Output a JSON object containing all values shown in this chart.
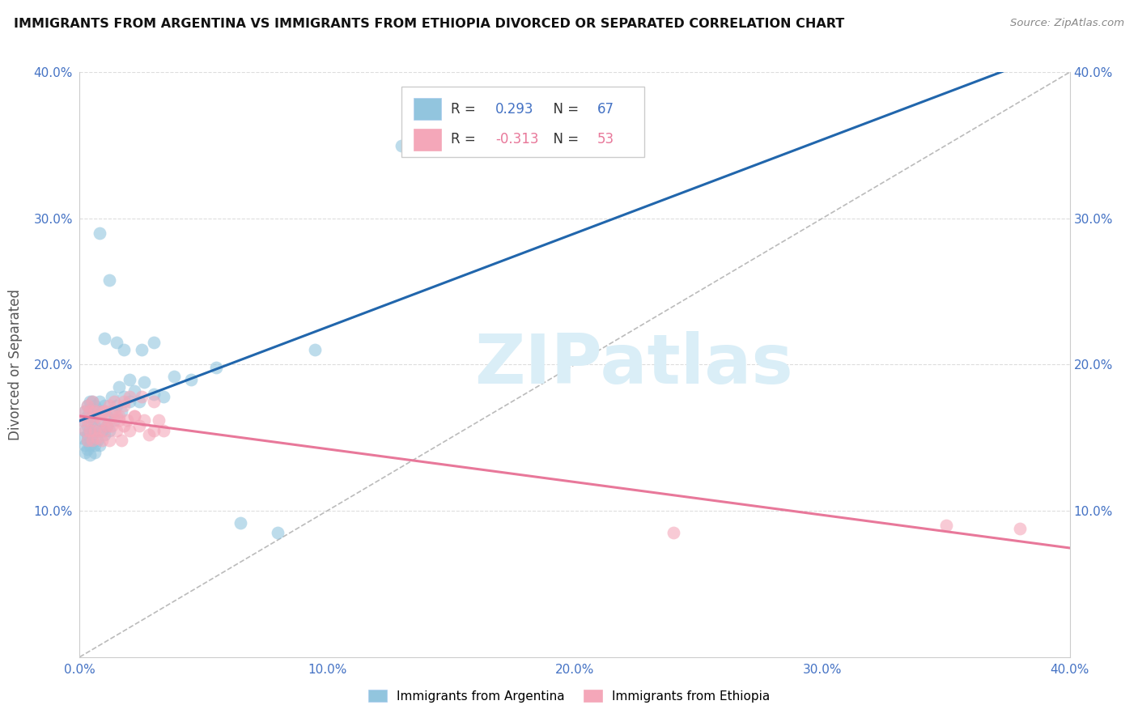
{
  "title": "IMMIGRANTS FROM ARGENTINA VS IMMIGRANTS FROM ETHIOPIA DIVORCED OR SEPARATED CORRELATION CHART",
  "source": "Source: ZipAtlas.com",
  "ylabel": "Divorced or Separated",
  "xlim": [
    0.0,
    0.4
  ],
  "ylim": [
    0.0,
    0.4
  ],
  "xtick_vals": [
    0.0,
    0.1,
    0.2,
    0.3,
    0.4
  ],
  "ytick_vals": [
    0.1,
    0.2,
    0.3,
    0.4
  ],
  "argentina_R": 0.293,
  "argentina_N": 67,
  "ethiopia_R": -0.313,
  "ethiopia_N": 53,
  "argentina_color": "#92c5de",
  "ethiopia_color": "#f4a7b9",
  "argentina_line_color": "#2166ac",
  "ethiopia_line_color": "#e8789a",
  "diagonal_color": "#bbbbbb",
  "watermark": "ZIPatlas",
  "watermark_color": "#daeef7",
  "grid_color": "#dddddd",
  "spine_color": "#cccccc",
  "title_color": "#111111",
  "source_color": "#888888",
  "tick_color": "#4472c4",
  "ylabel_color": "#555555",
  "argentina_x": [
    0.001,
    0.001,
    0.002,
    0.002,
    0.002,
    0.002,
    0.003,
    0.003,
    0.003,
    0.003,
    0.003,
    0.003,
    0.004,
    0.004,
    0.004,
    0.004,
    0.004,
    0.005,
    0.005,
    0.005,
    0.005,
    0.005,
    0.006,
    0.006,
    0.006,
    0.006,
    0.007,
    0.007,
    0.007,
    0.008,
    0.008,
    0.008,
    0.009,
    0.009,
    0.01,
    0.01,
    0.011,
    0.011,
    0.012,
    0.013,
    0.013,
    0.014,
    0.015,
    0.016,
    0.017,
    0.018,
    0.02,
    0.022,
    0.024,
    0.026,
    0.03,
    0.034,
    0.038,
    0.045,
    0.055,
    0.065,
    0.08,
    0.095,
    0.03,
    0.015,
    0.018,
    0.025,
    0.01,
    0.13,
    0.02,
    0.012,
    0.008
  ],
  "argentina_y": [
    0.15,
    0.162,
    0.145,
    0.155,
    0.168,
    0.14,
    0.152,
    0.165,
    0.148,
    0.172,
    0.142,
    0.158,
    0.145,
    0.168,
    0.155,
    0.175,
    0.138,
    0.152,
    0.165,
    0.148,
    0.175,
    0.162,
    0.145,
    0.158,
    0.172,
    0.14,
    0.155,
    0.168,
    0.148,
    0.162,
    0.145,
    0.175,
    0.155,
    0.168,
    0.152,
    0.172,
    0.158,
    0.165,
    0.155,
    0.168,
    0.178,
    0.162,
    0.172,
    0.185,
    0.168,
    0.178,
    0.175,
    0.182,
    0.175,
    0.188,
    0.18,
    0.178,
    0.192,
    0.19,
    0.198,
    0.092,
    0.085,
    0.21,
    0.215,
    0.215,
    0.21,
    0.21,
    0.218,
    0.35,
    0.19,
    0.258,
    0.29
  ],
  "ethiopia_x": [
    0.001,
    0.002,
    0.002,
    0.003,
    0.003,
    0.003,
    0.004,
    0.004,
    0.005,
    0.005,
    0.005,
    0.006,
    0.006,
    0.007,
    0.007,
    0.008,
    0.008,
    0.009,
    0.009,
    0.01,
    0.01,
    0.011,
    0.012,
    0.012,
    0.013,
    0.014,
    0.015,
    0.016,
    0.017,
    0.018,
    0.019,
    0.02,
    0.022,
    0.024,
    0.026,
    0.028,
    0.03,
    0.032,
    0.034,
    0.018,
    0.016,
    0.014,
    0.02,
    0.022,
    0.018,
    0.015,
    0.012,
    0.025,
    0.03,
    0.01,
    0.24,
    0.35,
    0.38
  ],
  "ethiopia_y": [
    0.162,
    0.155,
    0.168,
    0.148,
    0.162,
    0.172,
    0.155,
    0.168,
    0.148,
    0.162,
    0.175,
    0.155,
    0.168,
    0.15,
    0.165,
    0.155,
    0.168,
    0.148,
    0.162,
    0.155,
    0.168,
    0.158,
    0.162,
    0.148,
    0.158,
    0.168,
    0.155,
    0.162,
    0.148,
    0.158,
    0.162,
    0.155,
    0.165,
    0.158,
    0.162,
    0.152,
    0.155,
    0.162,
    0.155,
    0.175,
    0.165,
    0.175,
    0.178,
    0.165,
    0.172,
    0.165,
    0.172,
    0.178,
    0.175,
    0.168,
    0.085,
    0.09,
    0.088
  ]
}
